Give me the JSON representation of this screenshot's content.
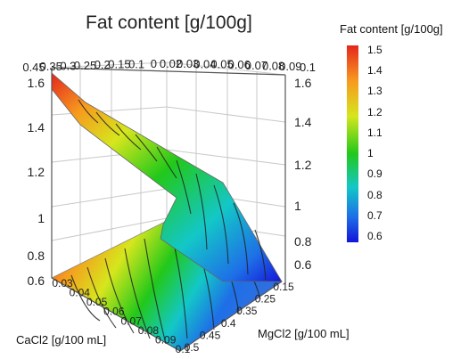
{
  "chart_data": {
    "type": "surface-3d",
    "title": "Fat content [g/100g]",
    "colorbar": {
      "title": "Fat content [g/100g]",
      "ticks": [
        "1.5",
        "1.4",
        "1.3",
        "1.2",
        "1.1",
        "1",
        "0.9",
        "0.8",
        "0.7",
        "0.6"
      ],
      "range": [
        0.6,
        1.55
      ],
      "colors": [
        "#e5261d",
        "#f79a1e",
        "#d6e61d",
        "#22c81a",
        "#13c7c7",
        "#1e6fe7",
        "#1414d9"
      ]
    },
    "x_axis": {
      "label": "CaCl2 [g/100 mL]",
      "ticks": [
        "0.03",
        "0.04",
        "0.05",
        "0.06",
        "0.07",
        "0.08",
        "0.09",
        "0.1"
      ],
      "range": [
        0.02,
        0.1
      ]
    },
    "y_axis": {
      "label": "MgCl2 [g/100 mL]",
      "ticks": [
        "0.15",
        "0.25",
        "0.35",
        "0.4",
        "0.45",
        "0.5"
      ],
      "range": [
        0.1,
        0.5
      ]
    },
    "z_axis": {
      "ticks_left": [
        "1.6",
        "1.4",
        "1.2",
        "1",
        "0.8",
        "0.6"
      ],
      "ticks_right": [
        "1.6",
        "1.4",
        "1.2",
        "1",
        "0.8",
        "0.6"
      ],
      "range": [
        0.6,
        1.6
      ]
    },
    "top_edge_ticks": [
      "0.45",
      "0.35",
      "0.3",
      "0.25",
      "0.2",
      "0.15",
      "0.1",
      "0",
      "0.02",
      "0.03",
      "0.04",
      "0.05",
      "0.06",
      "0.07",
      "0.08",
      "0.09",
      "0.1"
    ],
    "surface_corners": {
      "max": {
        "CaCl2": 0.02,
        "MgCl2": 0.5,
        "fat": 1.6
      },
      "min": {
        "CaCl2": 0.1,
        "MgCl2": 0.1,
        "fat": 0.6
      }
    },
    "grid": true,
    "legend": "right"
  }
}
